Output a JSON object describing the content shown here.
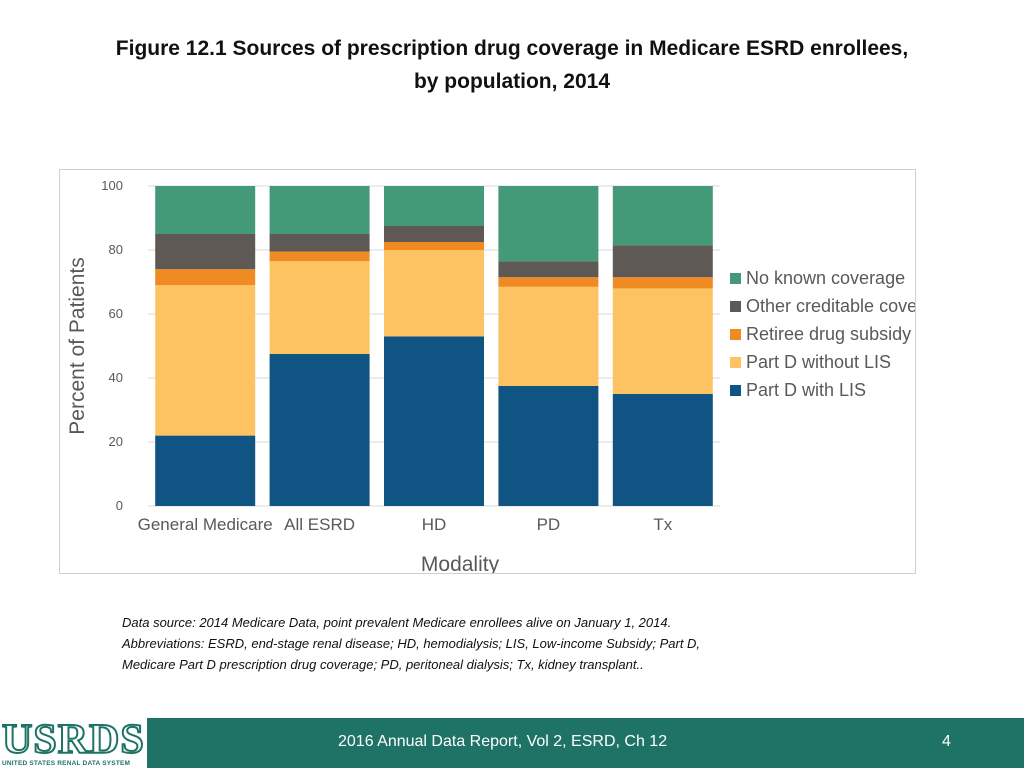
{
  "title": {
    "line1": "Figure 12.1  Sources of prescription drug coverage in Medicare ESRD enrollees,",
    "line2": "by population, 2014"
  },
  "chart_data": {
    "type": "bar",
    "stacked": true,
    "categories": [
      "General Medicare",
      "All ESRD",
      "HD",
      "PD",
      "Tx"
    ],
    "series": [
      {
        "name": "Part D with LIS",
        "color": "#0f5482",
        "values": [
          22,
          47.5,
          53,
          37.5,
          35
        ]
      },
      {
        "name": "Part D without LIS",
        "color": "#fdc262",
        "values": [
          47,
          29,
          27,
          31,
          33
        ]
      },
      {
        "name": "Retiree drug subsidy",
        "color": "#f08a23",
        "values": [
          5,
          3,
          2.5,
          3,
          3.5
        ]
      },
      {
        "name": "Other creditable coverage",
        "color": "#5e5955",
        "values": [
          11,
          5.5,
          5,
          5,
          10
        ]
      },
      {
        "name": "No known coverage",
        "color": "#449a78",
        "values": [
          15,
          15,
          12.5,
          23.5,
          18.5
        ]
      }
    ],
    "xlabel": "Modality",
    "ylabel": "Percent of Patients",
    "ylim": [
      0,
      100
    ],
    "yticks": [
      0,
      20,
      40,
      60,
      80,
      100
    ],
    "grid": true,
    "legend_position": "right"
  },
  "footnote": {
    "line1": "Data source: 2014 Medicare Data, point prevalent Medicare enrollees alive on January 1, 2014.",
    "line2": "Abbreviations: ESRD, end-stage renal disease; HD, hemodialysis; LIS, Low-income Subsidy; Part D,",
    "line3": "Medicare Part D prescription drug coverage; PD, peritoneal dialysis; Tx, kidney transplant.."
  },
  "footer": {
    "logo_text": "USRDS",
    "logo_subtext": "UNITED STATES RENAL DATA SYSTEM",
    "report_title": "2016 Annual Data Report, Vol 2, ESRD, Ch 12",
    "page_number": "4"
  },
  "colors": {
    "footer_bar": "#1e7366",
    "grid": "#d9d9d9"
  }
}
